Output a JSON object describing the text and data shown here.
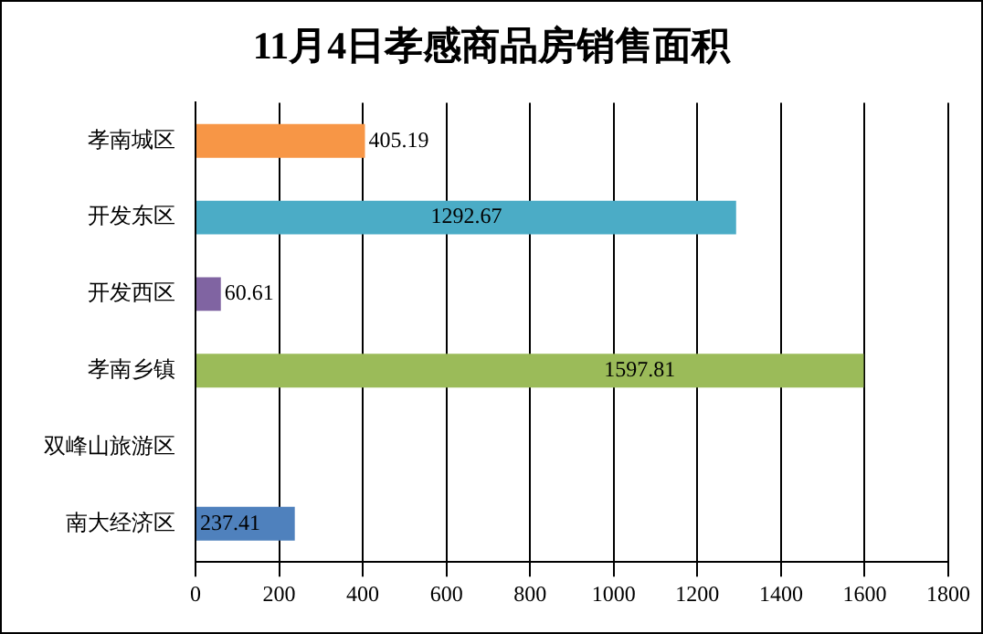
{
  "chart_data": {
    "type": "bar",
    "orientation": "horizontal",
    "title": "11月4日孝感商品房销售面积",
    "categories": [
      "孝南城区",
      "开发东区",
      "开发西区",
      "孝南乡镇",
      "双峰山旅游区",
      "南大经济区"
    ],
    "values": [
      405.19,
      1292.67,
      60.61,
      1597.81,
      null,
      237.41
    ],
    "colors": [
      "#f79646",
      "#4bacc6",
      "#8064a2",
      "#9bbb59",
      "#4f81bd",
      "#4f81bd"
    ],
    "xlim": [
      0,
      1800
    ],
    "xticks": [
      0,
      200,
      400,
      600,
      800,
      1000,
      1200,
      1400,
      1600,
      1800
    ],
    "grid": "x",
    "legend": false,
    "data_labels": true
  }
}
